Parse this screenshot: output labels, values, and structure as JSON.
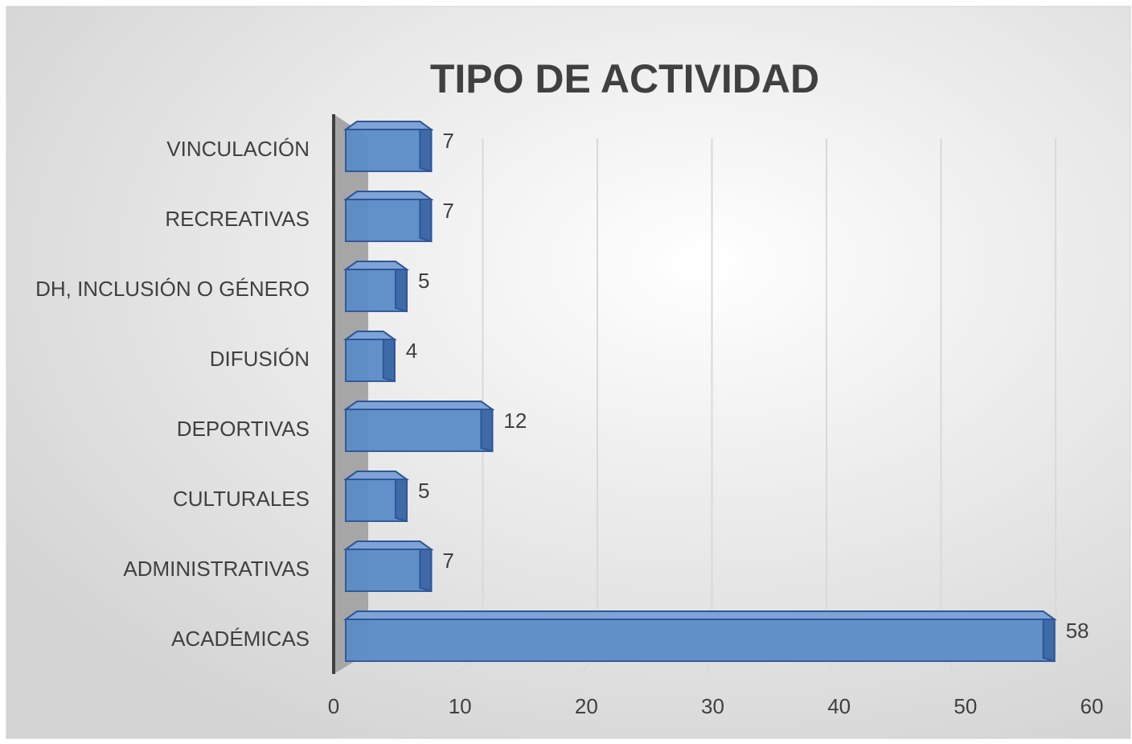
{
  "chart_data": {
    "type": "bar",
    "orientation": "horizontal",
    "title": "TIPO DE ACTIVIDAD",
    "categories": [
      "ACADÉMICAS",
      "ADMINISTRATIVAS",
      "CULTURALES",
      "DEPORTIVAS",
      "DIFUSIÓN",
      "DH, INCLUSIÓN O GÉNERO",
      "RECREATIVAS",
      "VINCULACIÓN"
    ],
    "values": [
      58,
      7,
      5,
      12,
      4,
      5,
      7,
      7
    ],
    "color": "#5b8cc8",
    "xlim": [
      0,
      60
    ],
    "xticks": [
      0,
      10,
      20,
      30,
      40,
      50,
      60
    ],
    "grid": true
  }
}
